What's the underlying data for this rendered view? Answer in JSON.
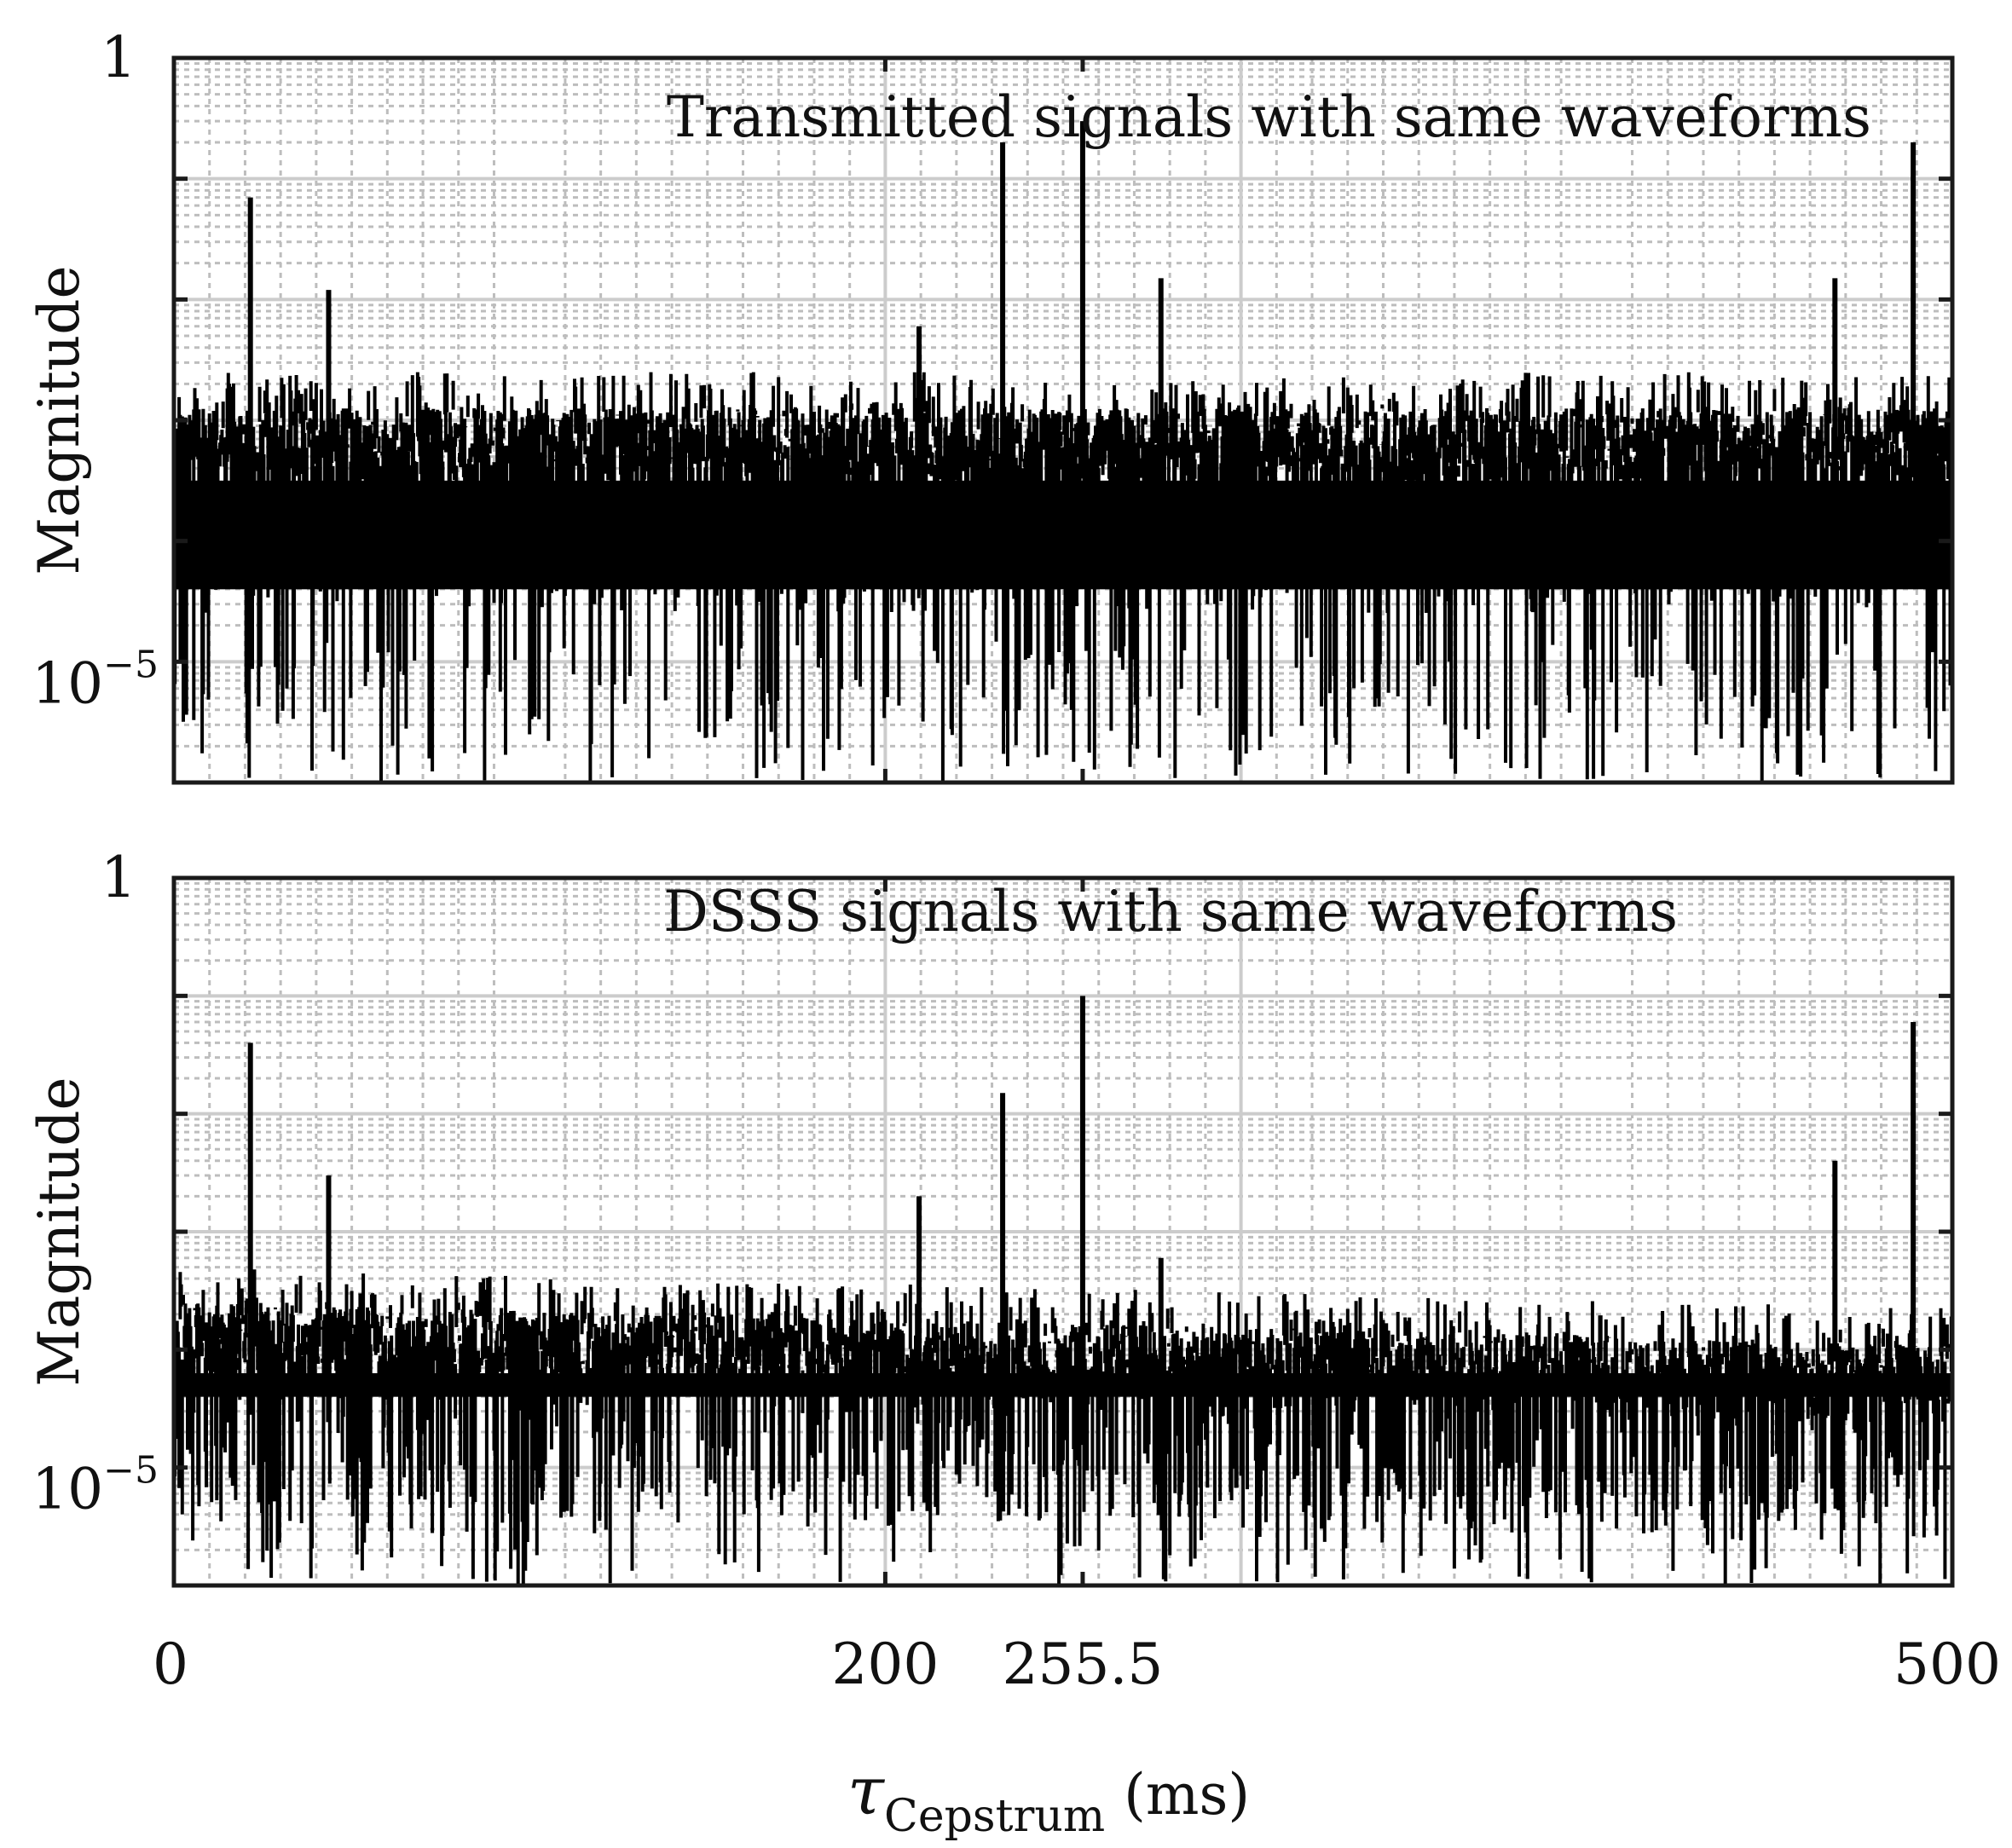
{
  "chart_data": [
    {
      "type": "line",
      "title": "Transmitted signals with same waveforms",
      "ylabel": "Magnitude",
      "xlim": [
        0,
        500
      ],
      "ylim_log10": [
        -6,
        0
      ],
      "y_scale": "log",
      "grid": "major and minor",
      "y_tick_labels": [
        {
          "value": 1,
          "label": "1"
        },
        {
          "value": 1e-05,
          "label": "10",
          "exp": "−5"
        }
      ],
      "series": [
        {
          "peaks": [
            {
              "x": 21.5,
              "y": 0.07
            },
            {
              "x": 43.5,
              "y": 0.012
            },
            {
              "x": 209.5,
              "y": 0.006
            },
            {
              "x": 233,
              "y": 0.2
            },
            {
              "x": 255.5,
              "y": 0.3
            },
            {
              "x": 277.5,
              "y": 0.015
            },
            {
              "x": 467,
              "y": 0.015
            },
            {
              "x": 489,
              "y": 0.2
            }
          ],
          "noise_log10_range": [
            -6.0,
            -2.6
          ]
        }
      ]
    },
    {
      "type": "line",
      "title": "DSSS signals with same waveforms",
      "ylabel": "Magnitude",
      "xlim": [
        0,
        500
      ],
      "ylim_log10": [
        -6,
        0
      ],
      "y_scale": "log",
      "grid": "major and minor",
      "y_tick_labels": [
        {
          "value": 1,
          "label": "1"
        },
        {
          "value": 1e-05,
          "label": "10",
          "exp": "−5"
        }
      ],
      "series": [
        {
          "peaks": [
            {
              "x": 21.5,
              "y": 0.04
            },
            {
              "x": 43.5,
              "y": 0.003
            },
            {
              "x": 209.5,
              "y": 0.002
            },
            {
              "x": 233,
              "y": 0.015
            },
            {
              "x": 255.5,
              "y": 0.1
            },
            {
              "x": 277.5,
              "y": 0.0006
            },
            {
              "x": 467,
              "y": 0.004
            },
            {
              "x": 489,
              "y": 0.06
            }
          ],
          "noise_log10_range": [
            -6.0,
            -3.3
          ]
        }
      ]
    }
  ],
  "x_axis": {
    "label_symbol": "τ",
    "label_subscript": "Cepstrum",
    "label_unit": "(ms)",
    "ticks": [
      {
        "value": 0,
        "label": "0"
      },
      {
        "value": 200,
        "label": "200"
      },
      {
        "value": 255.5,
        "label": "255.5"
      },
      {
        "value": 500,
        "label": "500"
      }
    ]
  },
  "colors": {
    "line": "#000000",
    "grid_major": "#cccccc",
    "grid_minor": "#bdbdbd",
    "axes": "#1a1a1a"
  }
}
